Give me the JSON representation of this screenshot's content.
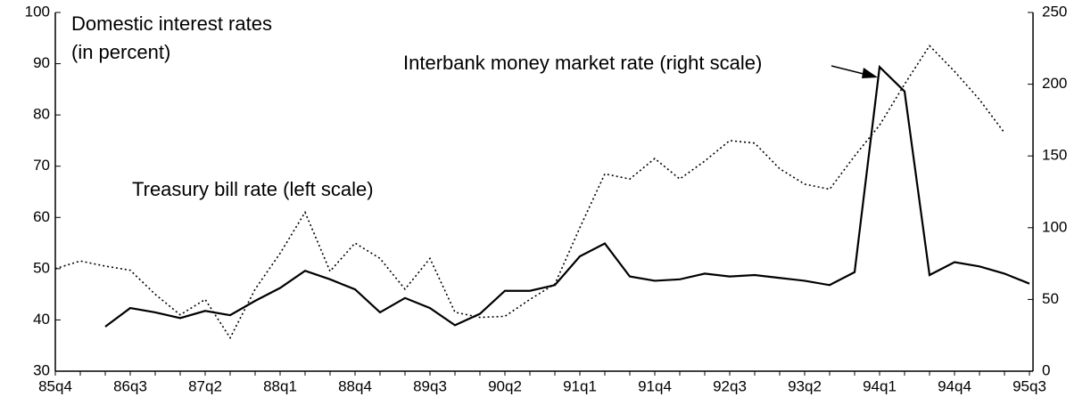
{
  "chart_data": {
    "type": "line",
    "title": "Domestic interest rates",
    "subtitle": "(in percent)",
    "categories": [
      "85q4",
      null,
      null,
      "86q3",
      null,
      null,
      "87q2",
      null,
      null,
      "88q1",
      null,
      null,
      "88q4",
      null,
      null,
      "89q3",
      null,
      null,
      "90q2",
      null,
      null,
      "91q1",
      null,
      null,
      "91q4",
      null,
      null,
      "92q3",
      null,
      null,
      "93q2",
      null,
      null,
      "94q1",
      null,
      null,
      "94q4",
      null,
      null,
      "95q3"
    ],
    "series": [
      {
        "name": "Treasury bill rate (left scale)",
        "color": "#000000",
        "style": "dotted",
        "axis": "y",
        "values": [
          50,
          51.5,
          50.5,
          49.7,
          45,
          41,
          44,
          36.5,
          46,
          53,
          61,
          49.5,
          55,
          52,
          46,
          52,
          41.5,
          40.5,
          40.7,
          44,
          47,
          58,
          68.5,
          67.5,
          71.5,
          67.5,
          71,
          75,
          74.5,
          69.5,
          66.5,
          65.5,
          72,
          78,
          86,
          93.5,
          88.5,
          83,
          76.5,
          null
        ]
      },
      {
        "name": "Interbank money market rate (right scale)",
        "color": "#000000",
        "style": "solid",
        "axis": "y2",
        "values": [
          null,
          null,
          31,
          44,
          41,
          37,
          42,
          39,
          49,
          58,
          70,
          64,
          57,
          41,
          51,
          44,
          32,
          40,
          56,
          56,
          60,
          80,
          89,
          66,
          63,
          64,
          68,
          66,
          67,
          65,
          63,
          60,
          69,
          212,
          195,
          67,
          76,
          73,
          68,
          61
        ]
      }
    ],
    "ylim": [
      30,
      100
    ],
    "yticks": [
      30,
      40,
      50,
      60,
      70,
      80,
      90,
      100
    ],
    "y2lim": [
      0,
      250
    ],
    "y2ticks": [
      0,
      50,
      100,
      150,
      200,
      250
    ],
    "grid": false
  }
}
